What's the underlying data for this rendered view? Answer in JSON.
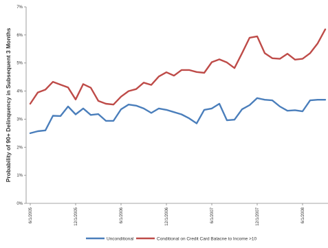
{
  "chart_data": {
    "type": "line",
    "xlabel": "",
    "ylabel": "Probability of 90+ Delinquency in Subsequent 3 Months",
    "ylim": [
      0,
      7
    ],
    "yticks": [
      "0%",
      "1%",
      "2%",
      "3%",
      "4%",
      "5%",
      "6%",
      "7%"
    ],
    "yticks_values": [
      0,
      1,
      2,
      3,
      4,
      5,
      6,
      7
    ],
    "x_tick_labels": [
      "6/1/2005",
      "12/1/2005",
      "6/1/2006",
      "12/1/2006",
      "6/1/2007",
      "12/1/2007",
      "6/1/2008"
    ],
    "x_tick_indices": [
      0,
      6,
      12,
      18,
      24,
      30,
      36
    ],
    "x": [
      "6/1/2005",
      "7/1/2005",
      "8/1/2005",
      "9/1/2005",
      "10/1/2005",
      "11/1/2005",
      "12/1/2005",
      "1/1/2006",
      "2/1/2006",
      "3/1/2006",
      "4/1/2006",
      "5/1/2006",
      "6/1/2006",
      "7/1/2006",
      "8/1/2006",
      "9/1/2006",
      "10/1/2006",
      "11/1/2006",
      "12/1/2006",
      "1/1/2007",
      "2/1/2007",
      "3/1/2007",
      "4/1/2007",
      "5/1/2007",
      "6/1/2007",
      "7/1/2007",
      "8/1/2007",
      "9/1/2007",
      "10/1/2007",
      "11/1/2007",
      "12/1/2007",
      "1/1/2008",
      "2/1/2008",
      "3/1/2008",
      "4/1/2008",
      "5/1/2008",
      "6/1/2008",
      "7/1/2008",
      "8/1/2008",
      "9/1/2008"
    ],
    "grid": false,
    "legend_position": "bottom",
    "series": [
      {
        "name": "Unconditional",
        "color": "#4a7ebb",
        "values": [
          2.5,
          2.57,
          2.6,
          3.12,
          3.11,
          3.45,
          3.17,
          3.38,
          3.15,
          3.18,
          2.94,
          2.94,
          3.35,
          3.52,
          3.48,
          3.38,
          3.22,
          3.38,
          3.33,
          3.25,
          3.17,
          3.03,
          2.85,
          3.33,
          3.38,
          3.55,
          2.96,
          2.98,
          3.35,
          3.5,
          3.75,
          3.69,
          3.67,
          3.45,
          3.3,
          3.32,
          3.28,
          3.67,
          3.69,
          3.69
        ]
      },
      {
        "name": "Conditional on Credit Card Balacne to Income >10",
        "color": "#be4b48",
        "values": [
          3.55,
          3.95,
          4.05,
          4.33,
          4.23,
          4.13,
          3.7,
          4.25,
          4.12,
          3.65,
          3.55,
          3.52,
          3.8,
          4.0,
          4.07,
          4.3,
          4.22,
          4.52,
          4.67,
          4.55,
          4.75,
          4.75,
          4.68,
          4.65,
          5.03,
          5.13,
          5.02,
          4.82,
          5.35,
          5.9,
          5.95,
          5.35,
          5.17,
          5.15,
          5.33,
          5.12,
          5.15,
          5.35,
          5.7,
          6.2
        ]
      }
    ]
  }
}
